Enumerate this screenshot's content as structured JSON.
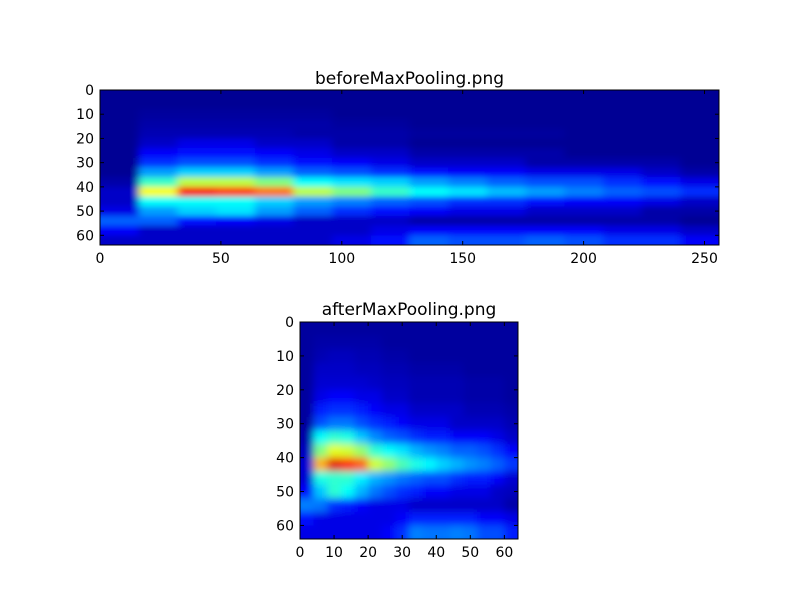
{
  "chart_data": [
    {
      "type": "heatmap",
      "title": "beforeMaxPooling.png",
      "colormap": "jet",
      "xlim": [
        0,
        256
      ],
      "ylim": [
        64,
        0
      ],
      "xticks": [
        "0",
        "50",
        "100",
        "150",
        "200",
        "250"
      ],
      "yticks": [
        "0",
        "10",
        "20",
        "30",
        "40",
        "50",
        "60"
      ],
      "grid": false,
      "cell_size": [
        16,
        4
      ],
      "values": [
        [
          0.02,
          0.02,
          0.02,
          0.02,
          0.02,
          0.02,
          0.02,
          0.02,
          0.02,
          0.02,
          0.02,
          0.02,
          0.02,
          0.02,
          0.02,
          0.02
        ],
        [
          0.02,
          0.02,
          0.02,
          0.02,
          0.02,
          0.02,
          0.02,
          0.02,
          0.02,
          0.02,
          0.02,
          0.02,
          0.02,
          0.02,
          0.02,
          0.02
        ],
        [
          0.02,
          0.03,
          0.03,
          0.03,
          0.03,
          0.03,
          0.02,
          0.02,
          0.02,
          0.02,
          0.02,
          0.02,
          0.02,
          0.02,
          0.02,
          0.02
        ],
        [
          0.02,
          0.04,
          0.04,
          0.04,
          0.04,
          0.04,
          0.03,
          0.03,
          0.02,
          0.02,
          0.02,
          0.02,
          0.02,
          0.02,
          0.02,
          0.02
        ],
        [
          0.02,
          0.05,
          0.05,
          0.05,
          0.05,
          0.04,
          0.04,
          0.04,
          0.03,
          0.03,
          0.03,
          0.03,
          0.02,
          0.02,
          0.02,
          0.02
        ],
        [
          0.02,
          0.07,
          0.1,
          0.1,
          0.07,
          0.07,
          0.04,
          0.04,
          0.02,
          0.02,
          0.02,
          0.02,
          0.02,
          0.02,
          0.02,
          0.02
        ],
        [
          0.02,
          0.12,
          0.14,
          0.14,
          0.12,
          0.1,
          0.07,
          0.07,
          0.04,
          0.04,
          0.04,
          0.04,
          0.02,
          0.02,
          0.02,
          0.02
        ],
        [
          0.02,
          0.17,
          0.2,
          0.2,
          0.17,
          0.14,
          0.12,
          0.1,
          0.07,
          0.07,
          0.07,
          0.04,
          0.04,
          0.04,
          0.04,
          0.02
        ],
        [
          0.02,
          0.28,
          0.33,
          0.33,
          0.28,
          0.22,
          0.2,
          0.17,
          0.14,
          0.12,
          0.12,
          0.1,
          0.1,
          0.1,
          0.07,
          0.04
        ],
        [
          0.04,
          0.43,
          0.56,
          0.56,
          0.5,
          0.38,
          0.35,
          0.33,
          0.28,
          0.25,
          0.22,
          0.2,
          0.2,
          0.17,
          0.14,
          0.1
        ],
        [
          0.07,
          0.62,
          0.88,
          0.82,
          0.76,
          0.56,
          0.5,
          0.43,
          0.38,
          0.35,
          0.31,
          0.28,
          0.25,
          0.22,
          0.2,
          0.17
        ],
        [
          0.07,
          0.38,
          0.38,
          0.38,
          0.33,
          0.28,
          0.25,
          0.22,
          0.2,
          0.17,
          0.17,
          0.14,
          0.12,
          0.12,
          0.1,
          0.07
        ],
        [
          0.1,
          0.28,
          0.33,
          0.35,
          0.28,
          0.22,
          0.17,
          0.14,
          0.12,
          0.1,
          0.1,
          0.07,
          0.07,
          0.07,
          0.04,
          0.04
        ],
        [
          0.22,
          0.22,
          0.14,
          0.12,
          0.1,
          0.07,
          0.07,
          0.07,
          0.04,
          0.04,
          0.04,
          0.04,
          0.04,
          0.04,
          0.04,
          0.02
        ],
        [
          0.12,
          0.07,
          0.07,
          0.07,
          0.07,
          0.07,
          0.07,
          0.1,
          0.12,
          0.12,
          0.12,
          0.12,
          0.12,
          0.1,
          0.1,
          0.07
        ],
        [
          0.07,
          0.07,
          0.07,
          0.07,
          0.07,
          0.07,
          0.1,
          0.14,
          0.22,
          0.2,
          0.2,
          0.22,
          0.2,
          0.17,
          0.17,
          0.12
        ]
      ]
    },
    {
      "type": "heatmap",
      "title": "afterMaxPooling.png",
      "colormap": "jet",
      "xlim": [
        0,
        64
      ],
      "ylim": [
        64,
        0
      ],
      "xticks": [
        "0",
        "10",
        "20",
        "30",
        "40",
        "50",
        "60"
      ],
      "yticks": [
        "0",
        "10",
        "20",
        "30",
        "40",
        "50",
        "60"
      ],
      "grid": false,
      "cell_size": [
        4,
        4
      ],
      "values": [
        [
          0.03,
          0.03,
          0.03,
          0.03,
          0.03,
          0.03,
          0.03,
          0.03,
          0.03,
          0.03,
          0.03,
          0.03,
          0.03,
          0.03,
          0.03,
          0.03
        ],
        [
          0.03,
          0.04,
          0.04,
          0.04,
          0.04,
          0.04,
          0.03,
          0.03,
          0.03,
          0.03,
          0.03,
          0.03,
          0.03,
          0.03,
          0.03,
          0.03
        ],
        [
          0.03,
          0.05,
          0.06,
          0.06,
          0.05,
          0.05,
          0.04,
          0.04,
          0.03,
          0.03,
          0.03,
          0.03,
          0.03,
          0.03,
          0.03,
          0.03
        ],
        [
          0.03,
          0.07,
          0.07,
          0.07,
          0.06,
          0.06,
          0.05,
          0.05,
          0.04,
          0.04,
          0.04,
          0.04,
          0.03,
          0.03,
          0.03,
          0.03
        ],
        [
          0.03,
          0.08,
          0.08,
          0.08,
          0.08,
          0.07,
          0.06,
          0.06,
          0.05,
          0.05,
          0.05,
          0.05,
          0.04,
          0.04,
          0.04,
          0.03
        ],
        [
          0.03,
          0.1,
          0.12,
          0.12,
          0.1,
          0.1,
          0.07,
          0.07,
          0.05,
          0.05,
          0.05,
          0.05,
          0.04,
          0.04,
          0.04,
          0.03
        ],
        [
          0.03,
          0.15,
          0.17,
          0.17,
          0.15,
          0.12,
          0.1,
          0.1,
          0.07,
          0.07,
          0.07,
          0.07,
          0.05,
          0.05,
          0.05,
          0.04
        ],
        [
          0.03,
          0.2,
          0.24,
          0.24,
          0.2,
          0.17,
          0.15,
          0.12,
          0.1,
          0.1,
          0.1,
          0.07,
          0.07,
          0.07,
          0.07,
          0.05
        ],
        [
          0.04,
          0.38,
          0.42,
          0.4,
          0.32,
          0.26,
          0.22,
          0.2,
          0.17,
          0.15,
          0.15,
          0.12,
          0.12,
          0.12,
          0.1,
          0.07
        ],
        [
          0.06,
          0.5,
          0.6,
          0.58,
          0.52,
          0.42,
          0.38,
          0.35,
          0.3,
          0.27,
          0.25,
          0.22,
          0.22,
          0.2,
          0.17,
          0.12
        ],
        [
          0.08,
          0.7,
          0.9,
          0.85,
          0.78,
          0.58,
          0.52,
          0.45,
          0.4,
          0.37,
          0.33,
          0.3,
          0.27,
          0.25,
          0.22,
          0.18
        ],
        [
          0.08,
          0.4,
          0.42,
          0.42,
          0.36,
          0.3,
          0.27,
          0.24,
          0.22,
          0.2,
          0.2,
          0.17,
          0.15,
          0.15,
          0.12,
          0.08
        ],
        [
          0.12,
          0.32,
          0.42,
          0.38,
          0.3,
          0.24,
          0.2,
          0.17,
          0.15,
          0.12,
          0.12,
          0.1,
          0.1,
          0.1,
          0.07,
          0.06
        ],
        [
          0.25,
          0.24,
          0.17,
          0.15,
          0.12,
          0.1,
          0.1,
          0.1,
          0.07,
          0.07,
          0.07,
          0.07,
          0.07,
          0.07,
          0.07,
          0.04
        ],
        [
          0.14,
          0.1,
          0.1,
          0.1,
          0.1,
          0.1,
          0.1,
          0.12,
          0.15,
          0.15,
          0.15,
          0.15,
          0.15,
          0.12,
          0.12,
          0.1
        ],
        [
          0.1,
          0.1,
          0.1,
          0.1,
          0.1,
          0.1,
          0.12,
          0.17,
          0.25,
          0.24,
          0.24,
          0.25,
          0.24,
          0.2,
          0.2,
          0.15
        ]
      ]
    }
  ]
}
